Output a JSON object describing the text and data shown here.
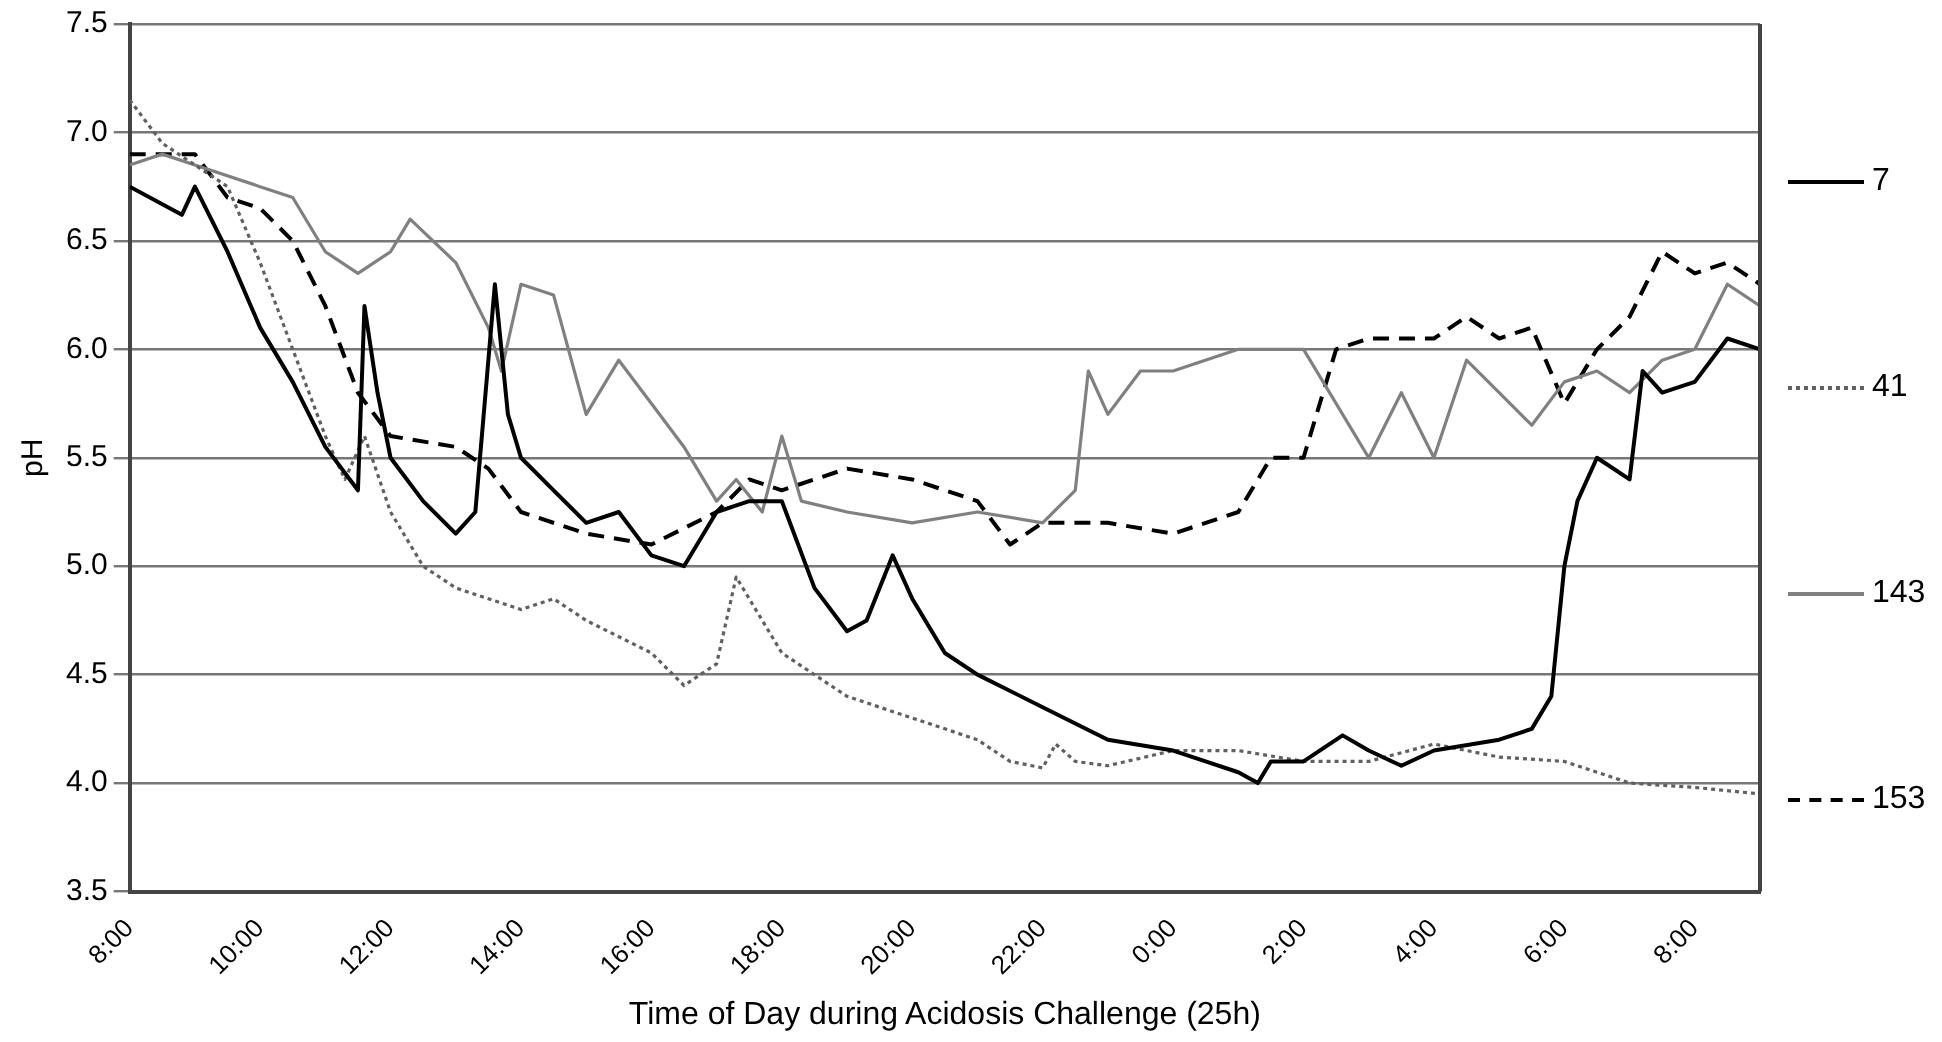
{
  "chart_data": {
    "type": "line",
    "xlabel": "Time of Day during Acidosis Challenge (25h)",
    "ylabel": "pH",
    "xlim": [
      "2000-01-01T08:00",
      "2000-01-02T09:00"
    ],
    "xticks": [
      {
        "value": "2000-01-01T08:00",
        "label": "8:00"
      },
      {
        "value": "2000-01-01T10:00",
        "label": "10:00"
      },
      {
        "value": "2000-01-01T12:00",
        "label": "12:00"
      },
      {
        "value": "2000-01-01T14:00",
        "label": "14:00"
      },
      {
        "value": "2000-01-01T16:00",
        "label": "16:00"
      },
      {
        "value": "2000-01-01T18:00",
        "label": "18:00"
      },
      {
        "value": "2000-01-01T20:00",
        "label": "20:00"
      },
      {
        "value": "2000-01-01T22:00",
        "label": "22:00"
      },
      {
        "value": "2000-01-02T00:00",
        "label": "0:00"
      },
      {
        "value": "2000-01-02T02:00",
        "label": "2:00"
      },
      {
        "value": "2000-01-02T04:00",
        "label": "4:00"
      },
      {
        "value": "2000-01-02T06:00",
        "label": "6:00"
      },
      {
        "value": "2000-01-02T08:00",
        "label": "8:00"
      }
    ],
    "ylim": [
      3.5,
      7.5
    ],
    "yticks": [
      3.5,
      {
        "value": 4,
        "label": "4.0"
      },
      4.5,
      {
        "value": 5,
        "label": "5.0"
      },
      5.5,
      {
        "value": 6,
        "label": "6.0"
      },
      6.5,
      {
        "value": 7,
        "label": "7.0"
      },
      7.5
    ],
    "grid": "y",
    "legend": "right",
    "marker": "none",
    "series": [
      {
        "name": "7",
        "color": "#000000",
        "line_style": "solid",
        "x": [
          "2000-01-01T08:00",
          "2000-01-01T08:48",
          "2000-01-01T09:00",
          "2000-01-01T09:30",
          "2000-01-01T10:00",
          "2000-01-01T10:30",
          "2000-01-01T11:00",
          "2000-01-01T11:30",
          "2000-01-01T11:36",
          "2000-01-01T11:48",
          "2000-01-01T12:00",
          "2000-01-01T12:30",
          "2000-01-01T13:00",
          "2000-01-01T13:18",
          "2000-01-01T13:36",
          "2000-01-01T13:48",
          "2000-01-01T14:00",
          "2000-01-01T14:30",
          "2000-01-01T15:00",
          "2000-01-01T15:30",
          "2000-01-01T16:00",
          "2000-01-01T16:30",
          "2000-01-01T17:00",
          "2000-01-01T17:30",
          "2000-01-01T18:00",
          "2000-01-01T18:30",
          "2000-01-01T19:00",
          "2000-01-01T19:18",
          "2000-01-01T19:42",
          "2000-01-01T20:00",
          "2000-01-01T20:30",
          "2000-01-01T21:00",
          "2000-01-01T22:00",
          "2000-01-01T23:00",
          "2000-01-02T00:00",
          "2000-01-02T01:00",
          "2000-01-02T01:18",
          "2000-01-02T01:30",
          "2000-01-02T02:00",
          "2000-01-02T02:36",
          "2000-01-02T03:00",
          "2000-01-02T03:30",
          "2000-01-02T04:00",
          "2000-01-02T05:00",
          "2000-01-02T05:30",
          "2000-01-02T05:48",
          "2000-01-02T06:00",
          "2000-01-02T06:12",
          "2000-01-02T06:30",
          "2000-01-02T07:00",
          "2000-01-02T07:12",
          "2000-01-02T07:30",
          "2000-01-02T08:00",
          "2000-01-02T08:30",
          "2000-01-02T09:00"
        ],
        "values": [
          6.75,
          6.62,
          6.75,
          6.45,
          6.1,
          5.85,
          5.55,
          5.35,
          6.2,
          5.8,
          5.5,
          5.3,
          5.15,
          5.25,
          6.3,
          5.7,
          5.5,
          5.35,
          5.2,
          5.25,
          5.05,
          5,
          5.25,
          5.3,
          5.3,
          4.9,
          4.7,
          4.75,
          5.05,
          4.85,
          4.6,
          4.5,
          4.35,
          4.2,
          4.15,
          4.05,
          4,
          4.1,
          4.1,
          4.22,
          4.15,
          4.08,
          4.15,
          4.2,
          4.25,
          4.4,
          5,
          5.3,
          5.5,
          5.4,
          5.9,
          5.8,
          5.85,
          6.05,
          6
        ]
      },
      {
        "name": "41",
        "color": "#606060",
        "line_style": "dotted",
        "x": [
          "2000-01-01T08:00",
          "2000-01-01T08:30",
          "2000-01-01T09:00",
          "2000-01-01T09:30",
          "2000-01-01T10:00",
          "2000-01-01T10:30",
          "2000-01-01T11:00",
          "2000-01-01T11:18",
          "2000-01-01T11:36",
          "2000-01-01T12:00",
          "2000-01-01T12:30",
          "2000-01-01T13:00",
          "2000-01-01T14:00",
          "2000-01-01T14:30",
          "2000-01-01T15:00",
          "2000-01-01T16:00",
          "2000-01-01T16:30",
          "2000-01-01T17:00",
          "2000-01-01T17:18",
          "2000-01-01T17:36",
          "2000-01-01T18:00",
          "2000-01-01T19:00",
          "2000-01-01T20:00",
          "2000-01-01T21:00",
          "2000-01-01T21:30",
          "2000-01-01T22:00",
          "2000-01-01T22:12",
          "2000-01-01T22:30",
          "2000-01-01T23:00",
          "2000-01-02T00:00",
          "2000-01-02T01:00",
          "2000-01-02T02:00",
          "2000-01-02T03:00",
          "2000-01-02T04:00",
          "2000-01-02T05:00",
          "2000-01-02T06:00",
          "2000-01-02T07:00",
          "2000-01-02T08:00",
          "2000-01-02T09:00"
        ],
        "values": [
          7.15,
          6.95,
          6.85,
          6.75,
          6.4,
          6,
          5.6,
          5.4,
          5.6,
          5.25,
          5,
          4.9,
          4.8,
          4.85,
          4.75,
          4.6,
          4.45,
          4.55,
          4.95,
          4.8,
          4.6,
          4.4,
          4.3,
          4.2,
          4.1,
          4.07,
          4.18,
          4.1,
          4.08,
          4.15,
          4.15,
          4.1,
          4.1,
          4.18,
          4.12,
          4.1,
          4,
          3.98,
          3.95
        ]
      },
      {
        "name": "143",
        "color": "#808080",
        "line_style": "solid",
        "x": [
          "2000-01-01T08:00",
          "2000-01-01T08:30",
          "2000-01-01T09:00",
          "2000-01-01T10:00",
          "2000-01-01T10:30",
          "2000-01-01T11:00",
          "2000-01-01T11:30",
          "2000-01-01T12:00",
          "2000-01-01T12:18",
          "2000-01-01T13:00",
          "2000-01-01T13:30",
          "2000-01-01T13:42",
          "2000-01-01T14:00",
          "2000-01-01T14:30",
          "2000-01-01T15:00",
          "2000-01-01T15:30",
          "2000-01-01T16:00",
          "2000-01-01T16:30",
          "2000-01-01T17:00",
          "2000-01-01T17:18",
          "2000-01-01T17:42",
          "2000-01-01T18:00",
          "2000-01-01T18:18",
          "2000-01-01T19:00",
          "2000-01-01T20:00",
          "2000-01-01T21:00",
          "2000-01-01T22:00",
          "2000-01-01T22:30",
          "2000-01-01T22:42",
          "2000-01-01T23:00",
          "2000-01-01T23:30",
          "2000-01-02T00:00",
          "2000-01-02T01:00",
          "2000-01-02T02:00",
          "2000-01-02T03:00",
          "2000-01-02T03:30",
          "2000-01-02T04:00",
          "2000-01-02T04:30",
          "2000-01-02T05:00",
          "2000-01-02T05:30",
          "2000-01-02T06:00",
          "2000-01-02T06:30",
          "2000-01-02T07:00",
          "2000-01-02T07:30",
          "2000-01-02T08:00",
          "2000-01-02T08:30",
          "2000-01-02T09:00"
        ],
        "values": [
          6.85,
          6.9,
          6.85,
          6.75,
          6.7,
          6.45,
          6.35,
          6.45,
          6.6,
          6.4,
          6.1,
          5.9,
          6.3,
          6.25,
          5.7,
          5.95,
          5.75,
          5.55,
          5.3,
          5.4,
          5.25,
          5.6,
          5.3,
          5.25,
          5.2,
          5.25,
          5.2,
          5.35,
          5.9,
          5.7,
          5.9,
          5.9,
          6,
          6,
          5.5,
          5.8,
          5.5,
          5.95,
          5.8,
          5.65,
          5.85,
          5.9,
          5.8,
          5.95,
          6,
          6.3,
          6.2
        ]
      },
      {
        "name": "153",
        "color": "#000000",
        "line_style": "dashed",
        "x": [
          "2000-01-01T08:00",
          "2000-01-01T09:00",
          "2000-01-01T09:30",
          "2000-01-01T10:00",
          "2000-01-01T10:30",
          "2000-01-01T11:00",
          "2000-01-01T11:30",
          "2000-01-01T12:00",
          "2000-01-01T13:00",
          "2000-01-01T13:30",
          "2000-01-01T14:00",
          "2000-01-01T15:00",
          "2000-01-01T16:00",
          "2000-01-01T17:00",
          "2000-01-01T17:30",
          "2000-01-01T18:00",
          "2000-01-01T19:00",
          "2000-01-01T20:00",
          "2000-01-01T21:00",
          "2000-01-01T21:30",
          "2000-01-01T22:00",
          "2000-01-01T23:00",
          "2000-01-02T00:00",
          "2000-01-02T01:00",
          "2000-01-02T01:30",
          "2000-01-02T02:00",
          "2000-01-02T02:30",
          "2000-01-02T03:00",
          "2000-01-02T04:00",
          "2000-01-02T04:30",
          "2000-01-02T05:00",
          "2000-01-02T05:30",
          "2000-01-02T06:00",
          "2000-01-02T06:30",
          "2000-01-02T07:00",
          "2000-01-02T07:30",
          "2000-01-02T08:00",
          "2000-01-02T08:30",
          "2000-01-02T09:00"
        ],
        "values": [
          6.9,
          6.9,
          6.7,
          6.65,
          6.5,
          6.2,
          5.8,
          5.6,
          5.55,
          5.45,
          5.25,
          5.15,
          5.1,
          5.25,
          5.4,
          5.35,
          5.45,
          5.4,
          5.3,
          5.1,
          5.2,
          5.2,
          5.15,
          5.25,
          5.5,
          5.5,
          6,
          6.05,
          6.05,
          6.15,
          6.05,
          6.1,
          5.75,
          6,
          6.15,
          6.45,
          6.35,
          6.4,
          6.3
        ]
      }
    ]
  }
}
